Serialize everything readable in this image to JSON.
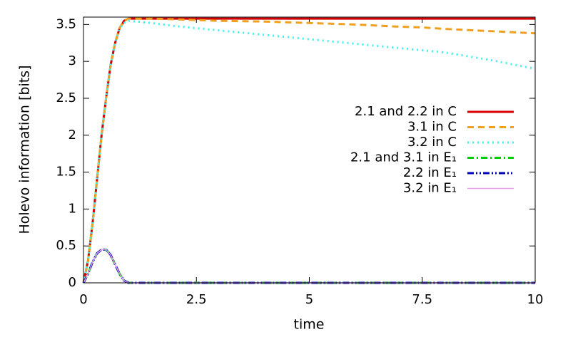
{
  "chart_data": {
    "type": "line",
    "xlabel": "time",
    "ylabel": "Holevo information [bits]",
    "x": [
      0,
      0.1,
      0.2,
      0.3,
      0.4,
      0.5,
      0.6,
      0.7,
      0.8,
      0.9,
      1,
      1.5,
      2,
      2.5,
      3,
      4,
      5,
      6,
      7,
      7.5,
      8,
      9,
      10
    ],
    "xlim": [
      0,
      10
    ],
    "xticks": [
      0,
      2.5,
      5,
      7.5,
      10
    ],
    "ylim": [
      0,
      3.6
    ],
    "yticks": [
      0,
      0.5,
      1,
      1.5,
      2,
      2.5,
      3,
      3.5
    ],
    "legend": "right",
    "series": [
      {
        "name": "2.1 and 2.2 in C",
        "color": "#d40000",
        "dash": "none",
        "width": 3,
        "values": [
          0,
          0.3,
          0.8,
          1.4,
          2.0,
          2.5,
          2.95,
          3.25,
          3.45,
          3.55,
          3.58,
          3.58,
          3.58,
          3.58,
          3.58,
          3.58,
          3.58,
          3.58,
          3.58,
          3.58,
          3.58,
          3.58,
          3.58
        ]
      },
      {
        "name": "3.1 in C",
        "color": "#f0a020",
        "dash": "9,6",
        "width": 3,
        "values": [
          0,
          0.3,
          0.8,
          1.4,
          2.0,
          2.5,
          2.95,
          3.25,
          3.45,
          3.55,
          3.58,
          3.58,
          3.57,
          3.56,
          3.55,
          3.54,
          3.52,
          3.5,
          3.47,
          3.46,
          3.44,
          3.41,
          3.38
        ]
      },
      {
        "name": "3.2 in C",
        "color": "#40f0f0",
        "dash": "2,5",
        "width": 3,
        "values": [
          0,
          0.3,
          0.8,
          1.4,
          2.0,
          2.5,
          2.95,
          3.25,
          3.45,
          3.52,
          3.55,
          3.52,
          3.48,
          3.45,
          3.42,
          3.36,
          3.3,
          3.24,
          3.18,
          3.15,
          3.12,
          3.02,
          2.9
        ]
      },
      {
        "name": "2.1 and 3.1 in E₁",
        "color": "#00d000",
        "dash": "9,4,2,4",
        "width": 3,
        "values": [
          0,
          0.12,
          0.28,
          0.4,
          0.45,
          0.45,
          0.38,
          0.25,
          0.12,
          0.03,
          0,
          0,
          0,
          0,
          0,
          0,
          0,
          0,
          0,
          0,
          0,
          0,
          0
        ]
      },
      {
        "name": "2.2 in E₁",
        "color": "#0000c0",
        "dash": "9,3,2,3,2,3",
        "width": 3,
        "values": [
          0,
          0.12,
          0.28,
          0.4,
          0.45,
          0.45,
          0.38,
          0.25,
          0.12,
          0.03,
          0,
          0,
          0,
          0,
          0,
          0,
          0,
          0,
          0,
          0,
          0,
          0,
          0
        ]
      },
      {
        "name": "3.2 in E₁",
        "color": "#e6a0e6",
        "dash": "none",
        "width": 1.5,
        "values": [
          0,
          0.12,
          0.28,
          0.4,
          0.45,
          0.45,
          0.38,
          0.25,
          0.12,
          0.03,
          0,
          0,
          0,
          0,
          0,
          0,
          0,
          0,
          0,
          0,
          0,
          0,
          0
        ]
      }
    ]
  }
}
